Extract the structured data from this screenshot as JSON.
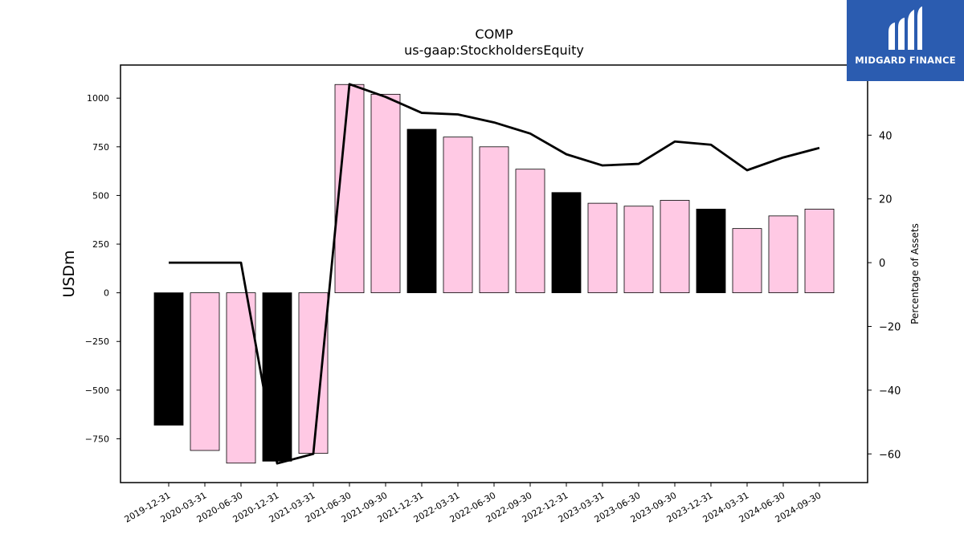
{
  "chart_data": {
    "type": "bar",
    "title": "COMP",
    "subtitle": "us-gaap:StockholdersEquity",
    "ylabel": "USDm",
    "y2label": "Percentage of Assets",
    "categories": [
      "2019-12-31",
      "2020-03-31",
      "2020-06-30",
      "2020-12-31",
      "2021-03-31",
      "2021-06-30",
      "2021-09-30",
      "2021-12-31",
      "2022-03-31",
      "2022-06-30",
      "2022-09-30",
      "2022-12-31",
      "2023-03-31",
      "2023-06-30",
      "2023-09-30",
      "2023-12-31",
      "2024-03-31",
      "2024-06-30",
      "2024-09-30"
    ],
    "series": [
      {
        "type": "bar",
        "values": [
          -680,
          -810,
          -875,
          -865,
          -825,
          1070,
          1020,
          840,
          800,
          750,
          635,
          515,
          460,
          445,
          475,
          430,
          330,
          395,
          430
        ]
      },
      {
        "type": "line",
        "axis": "right",
        "values": [
          0,
          0,
          0,
          -63,
          -60,
          56,
          52,
          47,
          46.5,
          44,
          40.5,
          34,
          30.5,
          31,
          38,
          37,
          29,
          33,
          36
        ]
      }
    ],
    "bar_colors": [
      "#000000",
      "#ffc9e4",
      "#ffc9e4",
      "#000000",
      "#ffc9e4",
      "#ffc9e4",
      "#ffc9e4",
      "#000000",
      "#ffc9e4",
      "#ffc9e4",
      "#ffc9e4",
      "#000000",
      "#ffc9e4",
      "#ffc9e4",
      "#ffc9e4",
      "#000000",
      "#ffc9e4",
      "#ffc9e4",
      "#ffc9e4"
    ],
    "ylim": [
      -975,
      1170
    ],
    "y2lim": [
      -69,
      62
    ],
    "yticks": [
      -750,
      -500,
      -250,
      0,
      250,
      500,
      750,
      1000
    ],
    "y2ticks": [
      -60,
      -40,
      -20,
      0,
      20,
      40
    ],
    "grid": false,
    "legend": "none"
  },
  "logo": {
    "text": "MIDGARD FINANCE",
    "colors": {
      "background": "#2b5cb0",
      "foreground": "#ffffff"
    }
  }
}
